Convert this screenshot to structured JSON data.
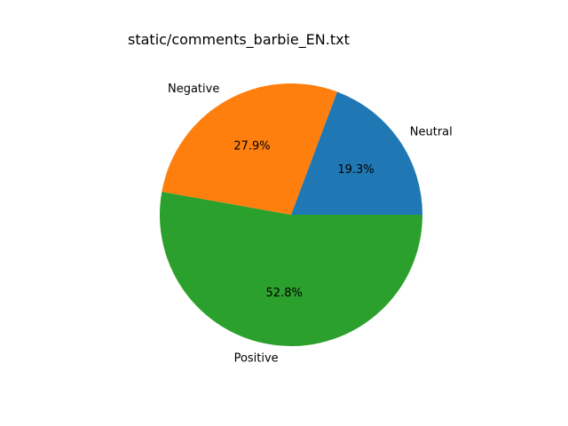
{
  "chart_data": {
    "type": "pie",
    "title": "static/comments_barbie_EN.txt",
    "start_angle_deg": 0,
    "direction": "counterclockwise",
    "slices": [
      {
        "label": "Neutral",
        "value": 19.3,
        "pct_label": "19.3%",
        "color": "#1f77b4"
      },
      {
        "label": "Negative",
        "value": 27.9,
        "pct_label": "27.9%",
        "color": "#ff7f0e"
      },
      {
        "label": "Positive",
        "value": 52.8,
        "pct_label": "52.8%",
        "color": "#2ca02c"
      }
    ]
  }
}
